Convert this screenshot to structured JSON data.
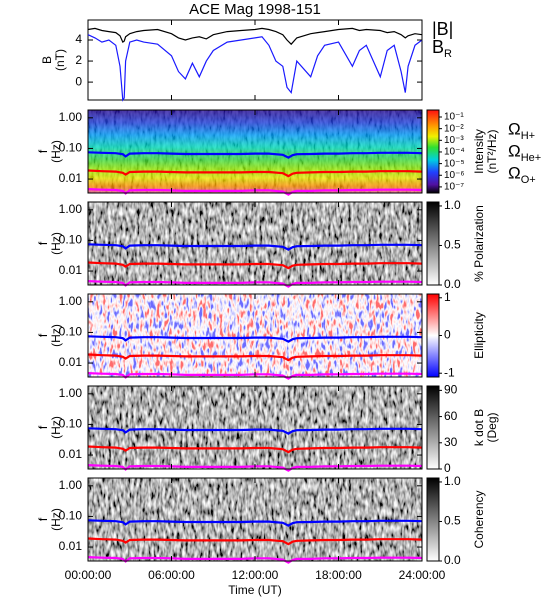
{
  "chart_data": [
    {
      "type": "line",
      "title": "ACE Mag 1998-151",
      "ylabel": [
        "B",
        "(nT)"
      ],
      "x": [
        0,
        0.5,
        1,
        1.5,
        2,
        2.3,
        2.5,
        2.6,
        2.7,
        3,
        3.5,
        4,
        5,
        6,
        6.5,
        7,
        7.5,
        8,
        8.5,
        9,
        10,
        11,
        12,
        12.5,
        13,
        13.5,
        14,
        14.3,
        14.6,
        15,
        16,
        16.5,
        17,
        18,
        19,
        19.5,
        20,
        21,
        21.5,
        22,
        22.5,
        22.8,
        23,
        23.5,
        24
      ],
      "ylim": [
        -1.7,
        5.9
      ],
      "yticks": [
        0,
        2,
        4
      ],
      "series": [
        {
          "name": "|B|",
          "color": "#000000",
          "values": [
            5.0,
            5.1,
            4.9,
            4.8,
            4.7,
            4.4,
            3.8,
            3.9,
            4.3,
            4.6,
            4.8,
            4.9,
            5.0,
            4.6,
            4.2,
            4.0,
            4.2,
            4.3,
            4.1,
            4.5,
            4.8,
            4.9,
            5.0,
            5.1,
            5.0,
            4.8,
            4.5,
            4.0,
            3.6,
            4.2,
            4.6,
            4.7,
            4.8,
            5.0,
            5.1,
            4.9,
            5.0,
            4.9,
            4.7,
            4.8,
            4.5,
            4.2,
            4.4,
            4.6,
            4.5
          ]
        },
        {
          "name": "BR",
          "color": "#1a1aff",
          "values": [
            4.5,
            4.2,
            3.8,
            4.0,
            3.5,
            1.5,
            -1.7,
            -1.5,
            2.0,
            3.8,
            4.0,
            3.8,
            3.6,
            2.5,
            1.0,
            0.3,
            1.8,
            0.5,
            2.0,
            3.0,
            3.8,
            4.0,
            4.2,
            4.3,
            3.5,
            2.0,
            1.5,
            -0.5,
            -1.0,
            2.0,
            0.5,
            2.5,
            3.5,
            3.8,
            1.5,
            3.0,
            3.5,
            0.5,
            3.0,
            3.5,
            1.0,
            -1.0,
            1.5,
            3.5,
            4.0
          ]
        }
      ]
    },
    {
      "type": "spectrogram",
      "ylabel": [
        "f",
        "(Hz)"
      ],
      "xlabel": "Time (UT)",
      "xlim": [
        0,
        24
      ],
      "xticks": [
        {
          "value": 0,
          "label": "00:00:00"
        },
        {
          "value": 6,
          "label": "06:00:00"
        },
        {
          "value": 12,
          "label": "12:00:00"
        },
        {
          "value": 18,
          "label": "18:00:00"
        },
        {
          "value": 24,
          "label": "24:00:00"
        }
      ],
      "log_y": true,
      "ylim": [
        0.0035,
        1.8
      ],
      "yticks": [
        {
          "value": 1,
          "label": "1.00"
        },
        {
          "value": 0.1,
          "label": "0.10"
        },
        {
          "value": 0.01,
          "label": "0.01"
        }
      ],
      "x": [
        0,
        1,
        2,
        2.5,
        2.7,
        3,
        4,
        5,
        6,
        7,
        8,
        9,
        10,
        11,
        12,
        13,
        14,
        14.4,
        14.7,
        15,
        16,
        17,
        18,
        19,
        20,
        21,
        22,
        23,
        24
      ],
      "series": [
        {
          "name": "ΩH+",
          "color": "#0000ff",
          "values": [
            0.075,
            0.072,
            0.07,
            0.065,
            0.055,
            0.068,
            0.07,
            0.07,
            0.068,
            0.066,
            0.066,
            0.066,
            0.066,
            0.066,
            0.068,
            0.068,
            0.062,
            0.05,
            0.06,
            0.065,
            0.066,
            0.068,
            0.068,
            0.07,
            0.07,
            0.072,
            0.072,
            0.072,
            0.07
          ]
        },
        {
          "name": "ΩHe+",
          "color": "#ff0000",
          "values": [
            0.019,
            0.018,
            0.0175,
            0.016,
            0.014,
            0.017,
            0.0175,
            0.0175,
            0.017,
            0.0165,
            0.0165,
            0.0165,
            0.0165,
            0.0165,
            0.017,
            0.017,
            0.0155,
            0.0125,
            0.015,
            0.016,
            0.0165,
            0.017,
            0.017,
            0.0175,
            0.0175,
            0.018,
            0.018,
            0.018,
            0.0175
          ]
        },
        {
          "name": "ΩO+",
          "color": "#ff00ff",
          "values": [
            0.0047,
            0.0045,
            0.0044,
            0.0041,
            0.0034,
            0.0043,
            0.0044,
            0.0044,
            0.0043,
            0.0041,
            0.0041,
            0.0041,
            0.0041,
            0.0041,
            0.0043,
            0.0043,
            0.0039,
            0.0031,
            0.0038,
            0.0041,
            0.0041,
            0.0043,
            0.0043,
            0.0044,
            0.0044,
            0.0045,
            0.0045,
            0.0045,
            0.0044
          ]
        }
      ],
      "panels": [
        {
          "colormap": "rainbow",
          "log_c": true,
          "colorbar_label": [
            "Intensity",
            "(nT²/Hz)"
          ],
          "clim": [
            3e-08,
            0.4
          ],
          "cticks": [
            {
              "value": 0.1,
              "label": "10⁻¹"
            },
            {
              "value": 0.01,
              "label": "10⁻²"
            },
            {
              "value": 0.001,
              "label": "10⁻³"
            },
            {
              "value": 0.0001,
              "label": "10⁻⁴"
            },
            {
              "value": 1e-05,
              "label": "10⁻⁵"
            },
            {
              "value": 1e-06,
              "label": "10⁻⁶"
            },
            {
              "value": 1e-07,
              "label": "10⁻⁷"
            }
          ]
        },
        {
          "colormap": "gray",
          "colorbar_label": [
            "% Polarization"
          ],
          "clim": [
            0,
            1.05
          ],
          "cticks": [
            {
              "value": 0,
              "label": "0.0"
            },
            {
              "value": 0.5,
              "label": "0.5"
            },
            {
              "value": 1,
              "label": "1.0"
            }
          ]
        },
        {
          "colormap": "bwr",
          "colorbar_label": [
            "Ellipticity"
          ],
          "clim": [
            -1.1,
            1.1
          ],
          "cticks": [
            -1,
            0,
            1
          ]
        },
        {
          "colormap": "gray",
          "colorbar_label": [
            "k dot B",
            "(Deg)"
          ],
          "clim": [
            0,
            95
          ],
          "cticks": [
            0,
            30,
            60,
            90
          ]
        },
        {
          "colormap": "gray",
          "colorbar_label": [
            "Coherency"
          ],
          "clim": [
            0,
            1.05
          ],
          "cticks": [
            {
              "value": 0,
              "label": "0.0"
            },
            {
              "value": 0.5,
              "label": "0.5"
            },
            {
              "value": 1,
              "label": "1.0"
            }
          ]
        }
      ]
    }
  ]
}
